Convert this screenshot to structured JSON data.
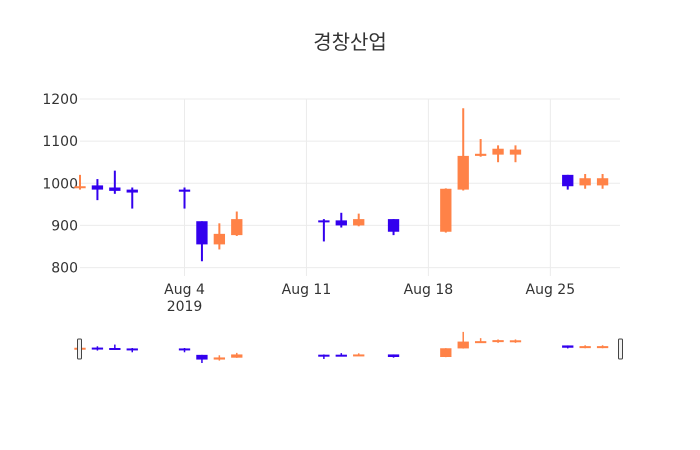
{
  "chart_data": {
    "type": "candlestick",
    "title": "경창산업",
    "ylim": [
      780,
      1200
    ],
    "y_ticks": [
      "800",
      "900",
      "1000",
      "1100",
      "1200"
    ],
    "x_range": [
      "2019-07-29",
      "2019-08-29"
    ],
    "x_ticks": [
      {
        "date": "2019-08-04",
        "label": "Aug 4",
        "sublabel": "2019"
      },
      {
        "date": "2019-08-11",
        "label": "Aug 11",
        "sublabel": ""
      },
      {
        "date": "2019-08-18",
        "label": "Aug 18",
        "sublabel": ""
      },
      {
        "date": "2019-08-25",
        "label": "Aug 25",
        "sublabel": ""
      }
    ],
    "grid": true,
    "rangeslider": true,
    "colors": {
      "increasing": "#ff8247",
      "decreasing": "#3300ee",
      "grid": "#ebebeb",
      "text": "#333333"
    },
    "candles": [
      {
        "date": "2019-07-29",
        "open": 990,
        "high": 1020,
        "low": 985,
        "close": 993
      },
      {
        "date": "2019-07-30",
        "open": 995,
        "high": 1010,
        "low": 960,
        "close": 985
      },
      {
        "date": "2019-07-31",
        "open": 990,
        "high": 1030,
        "low": 975,
        "close": 982
      },
      {
        "date": "2019-08-01",
        "open": 985,
        "high": 990,
        "low": 940,
        "close": 978
      },
      {
        "date": "2019-08-04",
        "open": 985,
        "high": 990,
        "low": 940,
        "close": 980
      },
      {
        "date": "2019-08-05",
        "open": 910,
        "high": 910,
        "low": 815,
        "close": 855
      },
      {
        "date": "2019-08-06",
        "open": 855,
        "high": 905,
        "low": 843,
        "close": 880
      },
      {
        "date": "2019-08-07",
        "open": 877,
        "high": 933,
        "low": 875,
        "close": 915
      },
      {
        "date": "2019-08-12",
        "open": 912,
        "high": 915,
        "low": 862,
        "close": 908
      },
      {
        "date": "2019-08-13",
        "open": 912,
        "high": 930,
        "low": 895,
        "close": 900
      },
      {
        "date": "2019-08-14",
        "open": 900,
        "high": 928,
        "low": 898,
        "close": 915
      },
      {
        "date": "2019-08-16",
        "open": 915,
        "high": 915,
        "low": 877,
        "close": 885
      },
      {
        "date": "2019-08-19",
        "open": 885,
        "high": 988,
        "low": 883,
        "close": 987
      },
      {
        "date": "2019-08-20",
        "open": 985,
        "high": 1178,
        "low": 983,
        "close": 1065
      },
      {
        "date": "2019-08-21",
        "open": 1065,
        "high": 1105,
        "low": 1063,
        "close": 1070
      },
      {
        "date": "2019-08-22",
        "open": 1068,
        "high": 1090,
        "low": 1050,
        "close": 1082
      },
      {
        "date": "2019-08-23",
        "open": 1068,
        "high": 1090,
        "low": 1050,
        "close": 1080
      },
      {
        "date": "2019-08-26",
        "open": 1020,
        "high": 1020,
        "low": 985,
        "close": 993
      },
      {
        "date": "2019-08-27",
        "open": 995,
        "high": 1022,
        "low": 987,
        "close": 1012
      },
      {
        "date": "2019-08-28",
        "open": 995,
        "high": 1022,
        "low": 987,
        "close": 1012
      }
    ]
  }
}
